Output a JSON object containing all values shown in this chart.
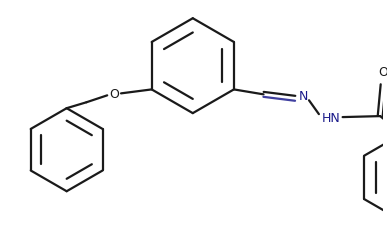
{
  "bg_color": "#ffffff",
  "line_color": "#1a1a1a",
  "bond_lw": 1.6,
  "figsize": [
    3.87,
    2.5
  ],
  "dpi": 100,
  "N_color": "#1a1a8a",
  "O_color": "#8a6000",
  "colors": {
    "bond": "#1a1a1a",
    "N": "#1a1aaa",
    "O": "#8a6000"
  }
}
